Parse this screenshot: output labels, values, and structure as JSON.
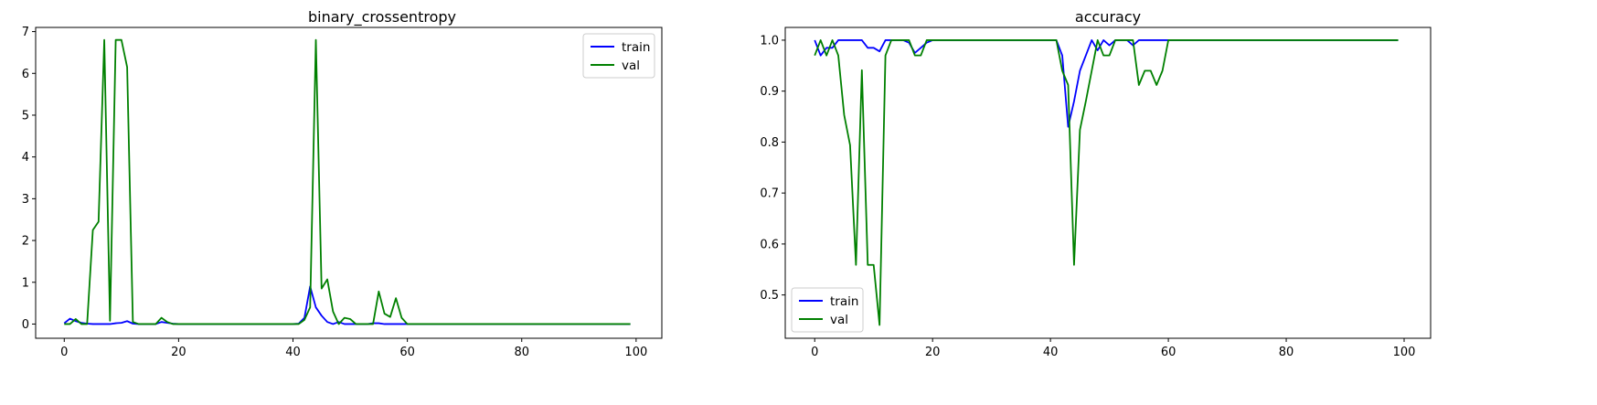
{
  "chart_data": [
    {
      "type": "line",
      "title": "binary_crossentropy",
      "xlim": [
        -5,
        104.5
      ],
      "ylim": [
        -0.34,
        7.1
      ],
      "xticks": [
        0,
        20,
        40,
        60,
        80,
        100
      ],
      "yticks": [
        0,
        1,
        2,
        3,
        4,
        5,
        6,
        7
      ],
      "legend_position": "upper right",
      "series": [
        {
          "name": "train",
          "color": "#0000ff",
          "points": [
            [
              0,
              0.02
            ],
            [
              1,
              0.13
            ],
            [
              2,
              0.07
            ],
            [
              3,
              0.03
            ],
            [
              4,
              0.01
            ],
            [
              5,
              0.0
            ],
            [
              6,
              0.0
            ],
            [
              7,
              0.0
            ],
            [
              8,
              0.0
            ],
            [
              9,
              0.02
            ],
            [
              10,
              0.03
            ],
            [
              11,
              0.07
            ],
            [
              12,
              0.01
            ],
            [
              13,
              0.0
            ],
            [
              14,
              0.0
            ],
            [
              15,
              0.0
            ],
            [
              16,
              0.0
            ],
            [
              17,
              0.05
            ],
            [
              18,
              0.03
            ],
            [
              19,
              0.01
            ],
            [
              20,
              0.0
            ],
            [
              25,
              0.0
            ],
            [
              30,
              0.0
            ],
            [
              35,
              0.0
            ],
            [
              40,
              0.0
            ],
            [
              41,
              0.01
            ],
            [
              42,
              0.15
            ],
            [
              43,
              0.9
            ],
            [
              44,
              0.4
            ],
            [
              45,
              0.2
            ],
            [
              46,
              0.05
            ],
            [
              47,
              0.0
            ],
            [
              48,
              0.05
            ],
            [
              49,
              0.0
            ],
            [
              50,
              0.0
            ],
            [
              51,
              0.0
            ],
            [
              52,
              0.0
            ],
            [
              53,
              0.0
            ],
            [
              54,
              0.02
            ],
            [
              55,
              0.02
            ],
            [
              56,
              0.0
            ],
            [
              57,
              0.0
            ],
            [
              58,
              0.0
            ],
            [
              59,
              0.0
            ],
            [
              60,
              0.0
            ],
            [
              70,
              0.0
            ],
            [
              80,
              0.0
            ],
            [
              90,
              0.0
            ],
            [
              99,
              0.0
            ]
          ]
        },
        {
          "name": "val",
          "color": "#008000",
          "points": [
            [
              0,
              0.0
            ],
            [
              1,
              0.0
            ],
            [
              2,
              0.12
            ],
            [
              3,
              0.0
            ],
            [
              4,
              0.0
            ],
            [
              5,
              2.25
            ],
            [
              6,
              2.45
            ],
            [
              7,
              6.8
            ],
            [
              8,
              0.08
            ],
            [
              9,
              6.8
            ],
            [
              10,
              6.8
            ],
            [
              11,
              6.15
            ],
            [
              12,
              0.05
            ],
            [
              13,
              0.0
            ],
            [
              14,
              0.0
            ],
            [
              15,
              0.0
            ],
            [
              16,
              0.0
            ],
            [
              17,
              0.15
            ],
            [
              18,
              0.05
            ],
            [
              19,
              0.0
            ],
            [
              20,
              0.0
            ],
            [
              25,
              0.0
            ],
            [
              30,
              0.0
            ],
            [
              35,
              0.0
            ],
            [
              40,
              0.0
            ],
            [
              41,
              0.0
            ],
            [
              42,
              0.1
            ],
            [
              43,
              0.4
            ],
            [
              44,
              6.8
            ],
            [
              45,
              0.85
            ],
            [
              46,
              1.07
            ],
            [
              47,
              0.3
            ],
            [
              48,
              0.0
            ],
            [
              49,
              0.15
            ],
            [
              50,
              0.12
            ],
            [
              51,
              0.0
            ],
            [
              52,
              0.0
            ],
            [
              53,
              0.0
            ],
            [
              54,
              0.0
            ],
            [
              55,
              0.78
            ],
            [
              56,
              0.25
            ],
            [
              57,
              0.17
            ],
            [
              58,
              0.62
            ],
            [
              59,
              0.15
            ],
            [
              60,
              0.0
            ],
            [
              70,
              0.0
            ],
            [
              80,
              0.0
            ],
            [
              90,
              0.0
            ],
            [
              99,
              0.0
            ]
          ]
        }
      ]
    },
    {
      "type": "line",
      "title": "accuracy",
      "xlim": [
        -5,
        104.5
      ],
      "ylim": [
        0.415,
        1.025
      ],
      "xticks": [
        0,
        20,
        40,
        60,
        80,
        100
      ],
      "yticks": [
        0.5,
        0.6,
        0.7,
        0.8,
        0.9,
        1.0
      ],
      "legend_position": "lower left",
      "series": [
        {
          "name": "train",
          "color": "#0000ff",
          "points": [
            [
              0,
              1.0
            ],
            [
              1,
              0.97
            ],
            [
              2,
              0.985
            ],
            [
              3,
              0.985
            ],
            [
              4,
              1.0
            ],
            [
              5,
              1.0
            ],
            [
              6,
              1.0
            ],
            [
              7,
              1.0
            ],
            [
              8,
              1.0
            ],
            [
              9,
              0.985
            ],
            [
              10,
              0.985
            ],
            [
              11,
              0.978
            ],
            [
              12,
              1.0
            ],
            [
              13,
              1.0
            ],
            [
              14,
              1.0
            ],
            [
              15,
              1.0
            ],
            [
              16,
              0.995
            ],
            [
              17,
              0.975
            ],
            [
              18,
              0.985
            ],
            [
              19,
              0.995
            ],
            [
              20,
              1.0
            ],
            [
              25,
              1.0
            ],
            [
              30,
              1.0
            ],
            [
              35,
              1.0
            ],
            [
              40,
              1.0
            ],
            [
              41,
              1.0
            ],
            [
              42,
              0.97
            ],
            [
              43,
              0.83
            ],
            [
              44,
              0.88
            ],
            [
              45,
              0.94
            ],
            [
              46,
              0.97
            ],
            [
              47,
              1.0
            ],
            [
              48,
              0.98
            ],
            [
              49,
              1.0
            ],
            [
              50,
              0.99
            ],
            [
              51,
              1.0
            ],
            [
              52,
              1.0
            ],
            [
              53,
              1.0
            ],
            [
              54,
              0.99
            ],
            [
              55,
              1.0
            ],
            [
              56,
              1.0
            ],
            [
              57,
              1.0
            ],
            [
              58,
              1.0
            ],
            [
              59,
              1.0
            ],
            [
              60,
              1.0
            ],
            [
              70,
              1.0
            ],
            [
              80,
              1.0
            ],
            [
              90,
              1.0
            ],
            [
              99,
              1.0
            ]
          ]
        },
        {
          "name": "val",
          "color": "#008000",
          "points": [
            [
              0,
              0.97
            ],
            [
              1,
              1.0
            ],
            [
              2,
              0.97
            ],
            [
              3,
              1.0
            ],
            [
              4,
              0.97
            ],
            [
              5,
              0.853
            ],
            [
              6,
              0.794
            ],
            [
              7,
              0.559
            ],
            [
              8,
              0.941
            ],
            [
              9,
              0.559
            ],
            [
              10,
              0.559
            ],
            [
              11,
              0.441
            ],
            [
              12,
              0.97
            ],
            [
              13,
              1.0
            ],
            [
              14,
              1.0
            ],
            [
              15,
              1.0
            ],
            [
              16,
              1.0
            ],
            [
              17,
              0.97
            ],
            [
              18,
              0.97
            ],
            [
              19,
              1.0
            ],
            [
              20,
              1.0
            ],
            [
              25,
              1.0
            ],
            [
              30,
              1.0
            ],
            [
              35,
              1.0
            ],
            [
              40,
              1.0
            ],
            [
              41,
              1.0
            ],
            [
              42,
              0.94
            ],
            [
              43,
              0.912
            ],
            [
              44,
              0.559
            ],
            [
              45,
              0.824
            ],
            [
              46,
              0.88
            ],
            [
              47,
              0.94
            ],
            [
              48,
              1.0
            ],
            [
              49,
              0.97
            ],
            [
              50,
              0.97
            ],
            [
              51,
              1.0
            ],
            [
              52,
              1.0
            ],
            [
              53,
              1.0
            ],
            [
              54,
              1.0
            ],
            [
              55,
              0.912
            ],
            [
              56,
              0.94
            ],
            [
              57,
              0.94
            ],
            [
              58,
              0.912
            ],
            [
              59,
              0.94
            ],
            [
              60,
              1.0
            ],
            [
              70,
              1.0
            ],
            [
              80,
              1.0
            ],
            [
              90,
              1.0
            ],
            [
              99,
              1.0
            ]
          ]
        }
      ]
    }
  ]
}
